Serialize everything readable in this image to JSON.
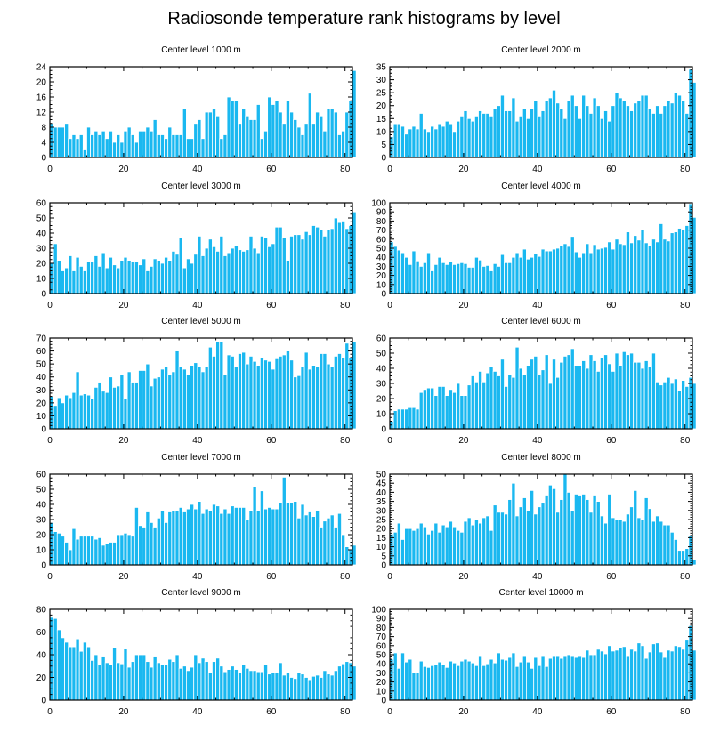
{
  "figure": {
    "title": "Radiosonde temperature rank histograms by level",
    "bar_color": "#1ab8f0",
    "bar_edge_color": "#ffffff",
    "frame_color": "#000000"
  },
  "chart_data": [
    {
      "type": "bar",
      "title": "Center level 1000 m",
      "xlim": [
        0,
        82
      ],
      "ylim": [
        0,
        24
      ],
      "xticks": [
        0,
        20,
        40,
        60,
        80
      ],
      "yticks": [
        0,
        4,
        8,
        12,
        16,
        20,
        24
      ],
      "values": [
        9,
        8,
        8,
        8,
        9,
        5,
        6,
        5,
        6,
        2,
        8,
        6,
        7,
        6,
        7,
        5,
        7,
        4,
        6,
        4,
        7,
        8,
        6,
        4,
        7,
        7,
        8,
        7,
        10,
        6,
        6,
        5,
        8,
        6,
        6,
        6,
        13,
        5,
        5,
        9,
        10,
        5,
        12,
        12,
        13,
        11,
        5,
        6,
        16,
        15,
        15,
        9,
        13,
        11,
        10,
        10,
        14,
        5,
        7,
        16,
        14,
        15,
        12,
        9,
        15,
        12,
        10,
        8,
        6,
        9,
        17,
        9,
        12,
        11,
        7,
        13,
        13,
        12,
        6,
        7,
        12,
        15,
        23
      ]
    },
    {
      "type": "bar",
      "title": "Center level 2000 m",
      "xlim": [
        0,
        82
      ],
      "ylim": [
        0,
        35
      ],
      "xticks": [
        0,
        20,
        40,
        60,
        80
      ],
      "yticks": [
        0,
        5,
        10,
        15,
        20,
        25,
        30,
        35
      ],
      "values": [
        8,
        13,
        13,
        12,
        9,
        11,
        12,
        11,
        17,
        11,
        10,
        12,
        11,
        13,
        12,
        14,
        13,
        10,
        14,
        16,
        18,
        15,
        14,
        16,
        18,
        17,
        17,
        16,
        19,
        20,
        24,
        18,
        18,
        23,
        14,
        16,
        19,
        15,
        19,
        22,
        16,
        18,
        22,
        23,
        26,
        21,
        19,
        15,
        22,
        24,
        20,
        15,
        24,
        20,
        17,
        23,
        20,
        15,
        18,
        14,
        20,
        25,
        23,
        22,
        20,
        18,
        21,
        22,
        24,
        24,
        19,
        17,
        20,
        17,
        20,
        22,
        21,
        25,
        24,
        22,
        17,
        34,
        29
      ]
    },
    {
      "type": "bar",
      "title": "Center level 3000 m",
      "xlim": [
        0,
        82
      ],
      "ylim": [
        0,
        60
      ],
      "xticks": [
        0,
        20,
        40,
        60,
        80
      ],
      "yticks": [
        0,
        10,
        20,
        30,
        40,
        50,
        60
      ],
      "values": [
        20,
        33,
        22,
        15,
        17,
        25,
        15,
        24,
        18,
        15,
        21,
        21,
        25,
        18,
        27,
        17,
        24,
        19,
        17,
        22,
        24,
        22,
        21,
        21,
        19,
        23,
        15,
        18,
        23,
        22,
        20,
        24,
        22,
        28,
        26,
        37,
        17,
        23,
        20,
        26,
        38,
        25,
        30,
        36,
        31,
        28,
        38,
        25,
        27,
        30,
        32,
        29,
        28,
        29,
        38,
        30,
        27,
        38,
        37,
        31,
        33,
        44,
        44,
        37,
        22,
        38,
        39,
        39,
        36,
        41,
        39,
        45,
        44,
        42,
        38,
        42,
        43,
        50,
        47,
        48,
        43,
        45,
        54
      ]
    },
    {
      "type": "bar",
      "title": "Center level 4000 m",
      "xlim": [
        0,
        82
      ],
      "ylim": [
        0,
        100
      ],
      "xticks": [
        0,
        20,
        40,
        60,
        80
      ],
      "yticks": [
        0,
        10,
        20,
        30,
        40,
        50,
        60,
        70,
        80,
        90,
        100
      ],
      "values": [
        57,
        52,
        48,
        45,
        40,
        32,
        47,
        36,
        30,
        34,
        45,
        25,
        32,
        40,
        34,
        32,
        35,
        32,
        33,
        34,
        33,
        29,
        29,
        40,
        37,
        30,
        31,
        25,
        33,
        30,
        43,
        34,
        34,
        40,
        45,
        40,
        49,
        38,
        40,
        44,
        41,
        49,
        47,
        47,
        49,
        50,
        53,
        55,
        52,
        63,
        46,
        40,
        45,
        55,
        45,
        54,
        49,
        50,
        51,
        57,
        49,
        60,
        55,
        54,
        68,
        56,
        64,
        59,
        70,
        56,
        53,
        60,
        57,
        77,
        60,
        58,
        67,
        68,
        72,
        71,
        75,
        99,
        84
      ]
    },
    {
      "type": "bar",
      "title": "Center level 5000 m",
      "xlim": [
        0,
        82
      ],
      "ylim": [
        0,
        70
      ],
      "xticks": [
        0,
        20,
        40,
        60,
        80
      ],
      "yticks": [
        0,
        10,
        20,
        30,
        40,
        50,
        60,
        70
      ],
      "values": [
        25,
        18,
        24,
        20,
        26,
        24,
        28,
        44,
        26,
        27,
        26,
        23,
        32,
        36,
        29,
        28,
        40,
        32,
        33,
        42,
        23,
        44,
        36,
        36,
        45,
        45,
        50,
        33,
        39,
        40,
        46,
        48,
        42,
        44,
        60,
        48,
        46,
        42,
        49,
        51,
        48,
        44,
        48,
        63,
        56,
        67,
        67,
        42,
        57,
        56,
        48,
        58,
        59,
        50,
        56,
        52,
        49,
        55,
        53,
        52,
        46,
        54,
        56,
        57,
        60,
        53,
        40,
        41,
        48,
        59,
        46,
        49,
        48,
        58,
        58,
        50,
        48,
        56,
        58,
        55,
        66,
        55,
        67
      ]
    },
    {
      "type": "bar",
      "title": "Center level 6000 m",
      "xlim": [
        0,
        82
      ],
      "ylim": [
        0,
        60
      ],
      "xticks": [
        0,
        20,
        40,
        60,
        80
      ],
      "yticks": [
        0,
        10,
        20,
        30,
        40,
        50,
        60
      ],
      "values": [
        5,
        12,
        13,
        13,
        13,
        14,
        14,
        13,
        24,
        26,
        27,
        27,
        22,
        28,
        28,
        22,
        26,
        24,
        30,
        22,
        22,
        29,
        35,
        31,
        38,
        31,
        37,
        41,
        38,
        35,
        46,
        28,
        36,
        34,
        54,
        40,
        36,
        42,
        46,
        48,
        36,
        39,
        49,
        30,
        46,
        34,
        44,
        48,
        49,
        53,
        42,
        42,
        45,
        40,
        49,
        45,
        38,
        47,
        49,
        43,
        38,
        50,
        42,
        51,
        49,
        50,
        44,
        44,
        40,
        45,
        41,
        50,
        31,
        29,
        31,
        34,
        30,
        33,
        25,
        32,
        28,
        34,
        30
      ]
    },
    {
      "type": "bar",
      "title": "Center level 7000 m",
      "xlim": [
        0,
        82
      ],
      "ylim": [
        0,
        60
      ],
      "xticks": [
        0,
        20,
        40,
        60,
        80
      ],
      "yticks": [
        0,
        10,
        20,
        30,
        40,
        50,
        60
      ],
      "values": [
        28,
        22,
        21,
        19,
        15,
        10,
        24,
        17,
        19,
        19,
        19,
        19,
        17,
        18,
        13,
        14,
        15,
        15,
        20,
        20,
        21,
        20,
        19,
        38,
        26,
        25,
        35,
        28,
        25,
        31,
        36,
        28,
        35,
        36,
        36,
        38,
        35,
        37,
        40,
        37,
        42,
        34,
        37,
        36,
        40,
        39,
        34,
        37,
        34,
        39,
        38,
        38,
        38,
        30,
        36,
        52,
        36,
        49,
        37,
        38,
        37,
        37,
        41,
        58,
        41,
        41,
        42,
        31,
        40,
        33,
        35,
        32,
        36,
        25,
        29,
        31,
        33,
        25,
        34,
        20,
        12,
        10,
        13
      ]
    },
    {
      "type": "bar",
      "title": "Center level 8000 m",
      "xlim": [
        0,
        82
      ],
      "ylim": [
        0,
        50
      ],
      "xticks": [
        0,
        20,
        40,
        60,
        80
      ],
      "yticks": [
        0,
        5,
        10,
        15,
        20,
        25,
        30,
        35,
        40,
        45,
        50
      ],
      "values": [
        17,
        18,
        23,
        14,
        20,
        20,
        19,
        20,
        23,
        21,
        17,
        19,
        23,
        18,
        22,
        21,
        24,
        21,
        19,
        18,
        24,
        26,
        22,
        25,
        23,
        26,
        27,
        19,
        33,
        29,
        29,
        28,
        36,
        45,
        27,
        32,
        37,
        30,
        41,
        28,
        32,
        34,
        38,
        44,
        42,
        29,
        36,
        50,
        40,
        30,
        39,
        38,
        39,
        36,
        29,
        38,
        35,
        27,
        23,
        39,
        26,
        25,
        25,
        24,
        28,
        32,
        41,
        26,
        25,
        37,
        31,
        24,
        27,
        24,
        22,
        22,
        18,
        14,
        8,
        8,
        9,
        16,
        3
      ]
    },
    {
      "type": "bar",
      "title": "Center level 9000 m",
      "xlim": [
        0,
        82
      ],
      "ylim": [
        0,
        80
      ],
      "xticks": [
        0,
        20,
        40,
        60,
        80
      ],
      "yticks": [
        0,
        20,
        40,
        60,
        80
      ],
      "values": [
        73,
        72,
        62,
        55,
        51,
        47,
        47,
        54,
        43,
        51,
        47,
        35,
        40,
        31,
        38,
        33,
        31,
        46,
        33,
        32,
        45,
        29,
        34,
        40,
        40,
        40,
        34,
        29,
        38,
        33,
        31,
        31,
        36,
        34,
        40,
        28,
        30,
        26,
        29,
        40,
        33,
        37,
        34,
        24,
        34,
        37,
        30,
        25,
        27,
        30,
        27,
        24,
        31,
        28,
        26,
        26,
        25,
        25,
        31,
        23,
        24,
        24,
        33,
        22,
        24,
        20,
        19,
        24,
        23,
        20,
        18,
        21,
        22,
        20,
        26,
        23,
        22,
        26,
        30,
        32,
        34,
        33,
        30
      ]
    },
    {
      "type": "bar",
      "title": "Center level 10000 m",
      "xlim": [
        0,
        82
      ],
      "ylim": [
        0,
        100
      ],
      "xticks": [
        0,
        20,
        40,
        60,
        80
      ],
      "yticks": [
        0,
        10,
        20,
        30,
        40,
        50,
        60,
        70,
        80,
        90,
        100
      ],
      "values": [
        45,
        52,
        35,
        52,
        42,
        45,
        30,
        30,
        43,
        37,
        36,
        38,
        39,
        42,
        39,
        36,
        43,
        41,
        38,
        43,
        45,
        43,
        41,
        38,
        48,
        38,
        40,
        45,
        41,
        52,
        45,
        44,
        47,
        52,
        37,
        42,
        48,
        42,
        35,
        47,
        38,
        48,
        37,
        46,
        48,
        48,
        46,
        48,
        50,
        48,
        47,
        48,
        47,
        55,
        50,
        50,
        56,
        54,
        51,
        60,
        54,
        55,
        58,
        59,
        48,
        56,
        54,
        63,
        60,
        46,
        53,
        62,
        63,
        53,
        47,
        55,
        54,
        60,
        59,
        56,
        66,
        82,
        55
      ]
    }
  ]
}
